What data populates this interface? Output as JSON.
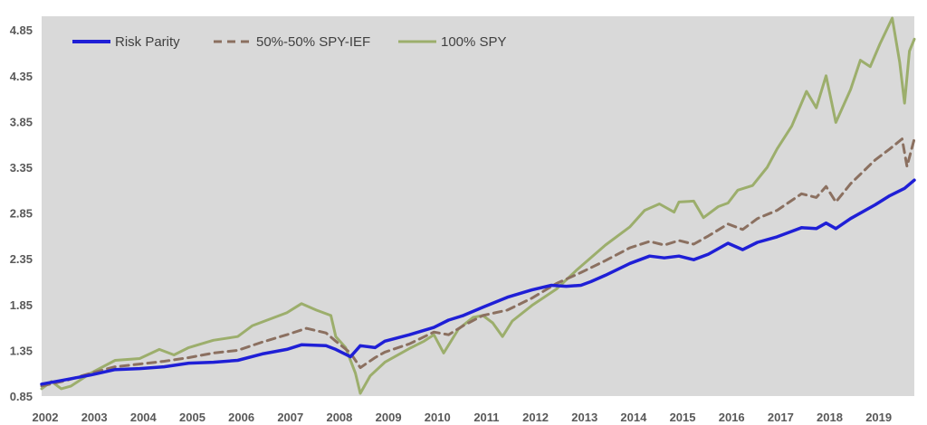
{
  "chart_data": {
    "type": "line",
    "title": "",
    "xlabel": "",
    "ylabel": "",
    "xlim": [
      2002,
      2019.8
    ],
    "ylim": [
      0.85,
      5.0
    ],
    "x_ticks": [
      "2002",
      "2003",
      "2004",
      "2005",
      "2006",
      "2007",
      "2008",
      "2009",
      "2010",
      "2011",
      "2012",
      "2013",
      "2014",
      "2015",
      "2016",
      "2017",
      "2018",
      "2019"
    ],
    "y_ticks": [
      "0.85",
      "1.35",
      "1.85",
      "2.35",
      "2.85",
      "3.35",
      "3.85",
      "4.35",
      "4.85"
    ],
    "grid": false,
    "legend_position": "top-left",
    "plot_background": "#d9d9d9",
    "series": [
      {
        "name": "Risk Parity",
        "color": "#1f1fd6",
        "style": "solid",
        "points": [
          [
            2002.0,
            0.98
          ],
          [
            2002.5,
            1.03
          ],
          [
            2003.0,
            1.08
          ],
          [
            2003.5,
            1.14
          ],
          [
            2004.0,
            1.15
          ],
          [
            2004.5,
            1.17
          ],
          [
            2005.0,
            1.21
          ],
          [
            2005.5,
            1.22
          ],
          [
            2006.0,
            1.24
          ],
          [
            2006.5,
            1.31
          ],
          [
            2007.0,
            1.36
          ],
          [
            2007.3,
            1.41
          ],
          [
            2007.8,
            1.4
          ],
          [
            2008.0,
            1.36
          ],
          [
            2008.3,
            1.28
          ],
          [
            2008.5,
            1.4
          ],
          [
            2008.8,
            1.38
          ],
          [
            2009.0,
            1.45
          ],
          [
            2009.5,
            1.52
          ],
          [
            2010.0,
            1.6
          ],
          [
            2010.3,
            1.68
          ],
          [
            2010.6,
            1.73
          ],
          [
            2011.0,
            1.82
          ],
          [
            2011.5,
            1.93
          ],
          [
            2012.0,
            2.01
          ],
          [
            2012.4,
            2.06
          ],
          [
            2012.7,
            2.05
          ],
          [
            2013.0,
            2.06
          ],
          [
            2013.2,
            2.1
          ],
          [
            2013.5,
            2.17
          ],
          [
            2014.0,
            2.3
          ],
          [
            2014.4,
            2.38
          ],
          [
            2014.7,
            2.36
          ],
          [
            2015.0,
            2.38
          ],
          [
            2015.3,
            2.34
          ],
          [
            2015.6,
            2.4
          ],
          [
            2016.0,
            2.52
          ],
          [
            2016.3,
            2.45
          ],
          [
            2016.6,
            2.53
          ],
          [
            2017.0,
            2.59
          ],
          [
            2017.5,
            2.69
          ],
          [
            2017.8,
            2.68
          ],
          [
            2018.0,
            2.74
          ],
          [
            2018.2,
            2.68
          ],
          [
            2018.5,
            2.79
          ],
          [
            2019.0,
            2.94
          ],
          [
            2019.3,
            3.04
          ],
          [
            2019.6,
            3.12
          ],
          [
            2019.8,
            3.21
          ]
        ]
      },
      {
        "name": "50%-50% SPY-IEF",
        "color": "#8b7060",
        "style": "dashed",
        "points": [
          [
            2002.0,
            0.96
          ],
          [
            2002.5,
            1.02
          ],
          [
            2003.0,
            1.1
          ],
          [
            2003.5,
            1.17
          ],
          [
            2004.0,
            1.2
          ],
          [
            2004.5,
            1.23
          ],
          [
            2005.0,
            1.27
          ],
          [
            2005.5,
            1.32
          ],
          [
            2006.0,
            1.35
          ],
          [
            2006.5,
            1.44
          ],
          [
            2007.0,
            1.52
          ],
          [
            2007.4,
            1.59
          ],
          [
            2007.8,
            1.54
          ],
          [
            2008.0,
            1.45
          ],
          [
            2008.3,
            1.32
          ],
          [
            2008.5,
            1.16
          ],
          [
            2008.8,
            1.27
          ],
          [
            2009.0,
            1.33
          ],
          [
            2009.5,
            1.42
          ],
          [
            2010.0,
            1.55
          ],
          [
            2010.3,
            1.52
          ],
          [
            2010.6,
            1.62
          ],
          [
            2011.0,
            1.73
          ],
          [
            2011.5,
            1.79
          ],
          [
            2012.0,
            1.92
          ],
          [
            2012.5,
            2.08
          ],
          [
            2013.0,
            2.2
          ],
          [
            2013.5,
            2.33
          ],
          [
            2014.0,
            2.47
          ],
          [
            2014.4,
            2.54
          ],
          [
            2014.7,
            2.5
          ],
          [
            2015.0,
            2.55
          ],
          [
            2015.3,
            2.51
          ],
          [
            2015.6,
            2.6
          ],
          [
            2016.0,
            2.73
          ],
          [
            2016.3,
            2.67
          ],
          [
            2016.6,
            2.79
          ],
          [
            2017.0,
            2.88
          ],
          [
            2017.5,
            3.06
          ],
          [
            2017.8,
            3.02
          ],
          [
            2018.0,
            3.14
          ],
          [
            2018.2,
            2.97
          ],
          [
            2018.5,
            3.17
          ],
          [
            2019.0,
            3.43
          ],
          [
            2019.3,
            3.55
          ],
          [
            2019.55,
            3.66
          ],
          [
            2019.65,
            3.36
          ],
          [
            2019.8,
            3.66
          ]
        ]
      },
      {
        "name": "100% SPY",
        "color": "#9cae6c",
        "style": "solid",
        "points": [
          [
            2002.0,
            0.93
          ],
          [
            2002.2,
            1.01
          ],
          [
            2002.4,
            0.93
          ],
          [
            2002.6,
            0.96
          ],
          [
            2003.0,
            1.1
          ],
          [
            2003.5,
            1.24
          ],
          [
            2004.0,
            1.26
          ],
          [
            2004.4,
            1.36
          ],
          [
            2004.7,
            1.3
          ],
          [
            2005.0,
            1.38
          ],
          [
            2005.5,
            1.46
          ],
          [
            2006.0,
            1.5
          ],
          [
            2006.3,
            1.62
          ],
          [
            2006.7,
            1.7
          ],
          [
            2007.0,
            1.76
          ],
          [
            2007.3,
            1.86
          ],
          [
            2007.6,
            1.79
          ],
          [
            2007.9,
            1.73
          ],
          [
            2008.0,
            1.5
          ],
          [
            2008.2,
            1.38
          ],
          [
            2008.4,
            1.1
          ],
          [
            2008.5,
            0.88
          ],
          [
            2008.7,
            1.07
          ],
          [
            2009.0,
            1.22
          ],
          [
            2009.5,
            1.37
          ],
          [
            2009.8,
            1.45
          ],
          [
            2010.0,
            1.52
          ],
          [
            2010.2,
            1.32
          ],
          [
            2010.5,
            1.58
          ],
          [
            2010.8,
            1.71
          ],
          [
            2011.0,
            1.73
          ],
          [
            2011.2,
            1.65
          ],
          [
            2011.4,
            1.5
          ],
          [
            2011.6,
            1.67
          ],
          [
            2012.0,
            1.84
          ],
          [
            2012.5,
            2.02
          ],
          [
            2012.9,
            2.22
          ],
          [
            2013.5,
            2.5
          ],
          [
            2014.0,
            2.7
          ],
          [
            2014.3,
            2.88
          ],
          [
            2014.6,
            2.95
          ],
          [
            2014.9,
            2.86
          ],
          [
            2015.0,
            2.97
          ],
          [
            2015.3,
            2.98
          ],
          [
            2015.5,
            2.8
          ],
          [
            2015.8,
            2.92
          ],
          [
            2016.0,
            2.96
          ],
          [
            2016.2,
            3.1
          ],
          [
            2016.5,
            3.15
          ],
          [
            2016.8,
            3.35
          ],
          [
            2017.0,
            3.55
          ],
          [
            2017.3,
            3.8
          ],
          [
            2017.6,
            4.18
          ],
          [
            2017.8,
            4.0
          ],
          [
            2018.0,
            4.35
          ],
          [
            2018.2,
            3.84
          ],
          [
            2018.5,
            4.2
          ],
          [
            2018.7,
            4.52
          ],
          [
            2018.9,
            4.45
          ],
          [
            2019.1,
            4.7
          ],
          [
            2019.35,
            4.98
          ],
          [
            2019.5,
            4.5
          ],
          [
            2019.6,
            4.05
          ],
          [
            2019.7,
            4.62
          ],
          [
            2019.8,
            4.75
          ]
        ]
      }
    ]
  }
}
